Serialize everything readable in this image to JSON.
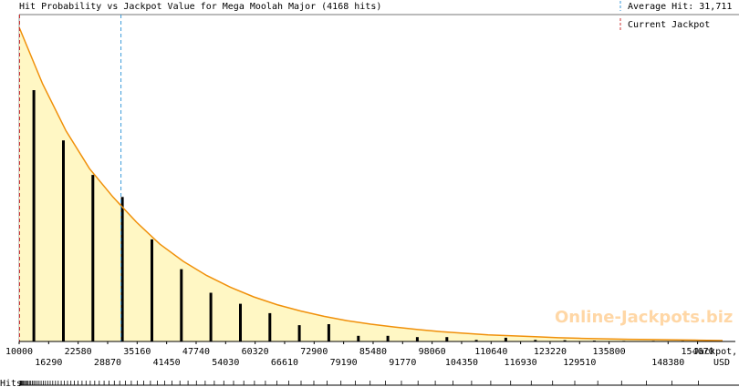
{
  "chart_data": {
    "type": "bar",
    "title": "Hit Probability vs Jackpot Value for Mega Moolah Major (4168 hits)",
    "xlabel_line1": "Jackpot,",
    "xlabel_line2": "USD",
    "ylabel": "Hits",
    "watermark": "Online-Jackpots.biz",
    "legend": {
      "average_label": "Average Hit: 31,711",
      "current_label": "Current Jackpot",
      "placement": "top-right",
      "average_color": "#3a9ad9",
      "current_color": "#cc3333"
    },
    "average_hit": 31711,
    "current_jackpot": 10000,
    "xlim": [
      10000,
      160000
    ],
    "ylim": [
      0,
      1
    ],
    "colors": {
      "curve": "#f0900a",
      "fill": "#fff7c4",
      "bars": "#000000",
      "axis": "#000000"
    },
    "x_ticks_top": [
      10000,
      22580,
      35160,
      47740,
      60320,
      72900,
      85480,
      98060,
      110640,
      123220,
      135800,
      154670
    ],
    "x_ticks_bottom": [
      16290,
      28870,
      41450,
      54030,
      66610,
      79190,
      91770,
      104350,
      116930,
      129510,
      148380
    ],
    "bars_x": [
      13140,
      19430,
      25720,
      32010,
      38300,
      44590,
      50880,
      57170,
      63460,
      69750,
      76040,
      82330,
      88620,
      94910,
      101200,
      107490,
      113780,
      120070,
      126360,
      132650,
      138940,
      145230,
      151520,
      157810
    ],
    "bars_y": [
      0.8,
      0.64,
      0.53,
      0.46,
      0.325,
      0.23,
      0.155,
      0.12,
      0.09,
      0.052,
      0.055,
      0.018,
      0.018,
      0.014,
      0.014,
      0.005,
      0.012,
      0.005,
      0.004,
      0.003,
      0.002,
      0.002,
      0.002,
      0.002
    ],
    "curve_x": [
      10000,
      15000,
      20000,
      25000,
      30000,
      35000,
      40000,
      45000,
      50000,
      55000,
      60000,
      65000,
      70000,
      75000,
      80000,
      85000,
      90000,
      95000,
      100000,
      105000,
      110000,
      115000,
      120000,
      125000,
      130000,
      135000,
      140000,
      145000,
      150000,
      155000,
      160000
    ],
    "curve_y": [
      1.0,
      0.82,
      0.67,
      0.55,
      0.46,
      0.38,
      0.31,
      0.255,
      0.21,
      0.173,
      0.142,
      0.117,
      0.097,
      0.08,
      0.066,
      0.055,
      0.046,
      0.038,
      0.031,
      0.026,
      0.021,
      0.018,
      0.015,
      0.012,
      0.01,
      0.0085,
      0.007,
      0.006,
      0.005,
      0.004,
      0.003
    ]
  }
}
